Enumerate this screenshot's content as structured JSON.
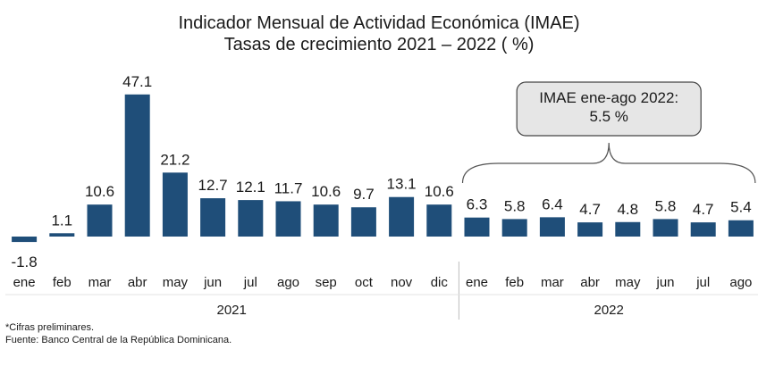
{
  "chart_data": {
    "type": "bar",
    "title": "Indicador Mensual de Actividad Económica (IMAE)",
    "subtitle": "Tasas de crecimiento 2021 – 2022 ( %)",
    "bar_color": "#1f4e79",
    "categories": [
      "ene",
      "feb",
      "mar",
      "abr",
      "may",
      "jun",
      "jul",
      "ago",
      "sep",
      "oct",
      "nov",
      "dic",
      "ene",
      "feb",
      "mar",
      "abr",
      "may",
      "jun",
      "jul",
      "ago"
    ],
    "values": [
      -1.8,
      1.1,
      10.6,
      47.1,
      21.2,
      12.7,
      12.1,
      11.7,
      10.6,
      9.7,
      13.1,
      10.6,
      6.3,
      5.8,
      6.4,
      4.7,
      4.8,
      5.8,
      4.7,
      5.4
    ],
    "value_labels": [
      "-1.8",
      "1.1",
      "10.6",
      "47.1",
      "21.2",
      "12.7",
      "12.1",
      "11.7",
      "10.6",
      "9.7",
      "13.1",
      "10.6",
      "6.3",
      "5.8",
      "6.4",
      "4.7",
      "4.8",
      "5.8",
      "4.7",
      "5.4"
    ],
    "year_groups": [
      {
        "label": "2021",
        "start": 0,
        "end": 11
      },
      {
        "label": "2022",
        "start": 12,
        "end": 19
      }
    ],
    "callout": {
      "lines": [
        "IMAE ene-ago 2022:",
        "5.5 %"
      ],
      "bracket_start": 12,
      "bracket_end": 19,
      "fill": "#e6e6e6"
    }
  },
  "footnotes": [
    "*Cifras preliminares.",
    "Fuente: Banco Central de la República Dominicana."
  ]
}
